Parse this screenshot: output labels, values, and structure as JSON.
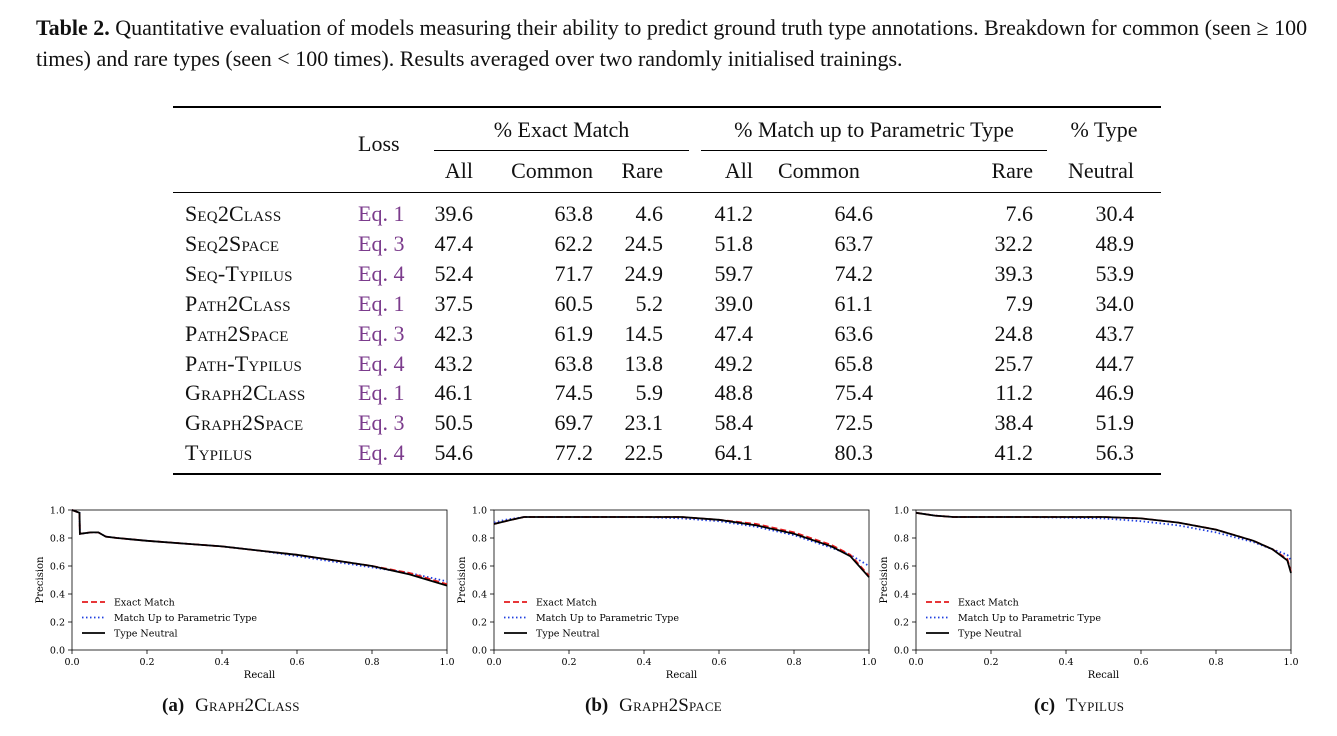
{
  "caption": {
    "label": "Table 2.",
    "text": "Quantitative evaluation of models measuring their ability to predict ground truth type annotations. Breakdown for common (seen ≥ 100 times) and rare types (seen < 100 times). Results averaged over two randomly initialised trainings."
  },
  "table": {
    "headers": {
      "loss": "Loss",
      "exact": "% Exact Match",
      "param": "% Match up to Parametric Type",
      "type": "% Type",
      "neutral": "Neutral",
      "all": "All",
      "common": "Common",
      "rare": "Rare"
    },
    "rows": [
      {
        "model": "Seq2Class",
        "loss": "Eq. 1",
        "e_all": "39.6",
        "e_common": "63.8",
        "e_rare": "4.6",
        "p_all": "41.2",
        "p_common": "64.6",
        "p_rare": "7.6",
        "neutral": "30.4"
      },
      {
        "model": "Seq2Space",
        "loss": "Eq. 3",
        "e_all": "47.4",
        "e_common": "62.2",
        "e_rare": "24.5",
        "p_all": "51.8",
        "p_common": "63.7",
        "p_rare": "32.2",
        "neutral": "48.9"
      },
      {
        "model": "Seq-Typilus",
        "loss": "Eq. 4",
        "e_all": "52.4",
        "e_common": "71.7",
        "e_rare": "24.9",
        "p_all": "59.7",
        "p_common": "74.2",
        "p_rare": "39.3",
        "neutral": "53.9"
      },
      {
        "model": "Path2Class",
        "loss": "Eq. 1",
        "e_all": "37.5",
        "e_common": "60.5",
        "e_rare": "5.2",
        "p_all": "39.0",
        "p_common": "61.1",
        "p_rare": "7.9",
        "neutral": "34.0"
      },
      {
        "model": "Path2Space",
        "loss": "Eq. 3",
        "e_all": "42.3",
        "e_common": "61.9",
        "e_rare": "14.5",
        "p_all": "47.4",
        "p_common": "63.6",
        "p_rare": "24.8",
        "neutral": "43.7"
      },
      {
        "model": "Path-Typilus",
        "loss": "Eq. 4",
        "e_all": "43.2",
        "e_common": "63.8",
        "e_rare": "13.8",
        "p_all": "49.2",
        "p_common": "65.8",
        "p_rare": "25.7",
        "neutral": "44.7"
      },
      {
        "model": "Graph2Class",
        "loss": "Eq. 1",
        "e_all": "46.1",
        "e_common": "74.5",
        "e_rare": "5.9",
        "p_all": "48.8",
        "p_common": "75.4",
        "p_rare": "11.2",
        "neutral": "46.9"
      },
      {
        "model": "Graph2Space",
        "loss": "Eq. 3",
        "e_all": "50.5",
        "e_common": "69.7",
        "e_rare": "23.1",
        "p_all": "58.4",
        "p_common": "72.5",
        "p_rare": "38.4",
        "neutral": "51.9"
      },
      {
        "model": "Typilus",
        "loss": "Eq. 4",
        "e_all": "54.6",
        "e_common": "77.2",
        "e_rare": "22.5",
        "p_all": "64.1",
        "p_common": "80.3",
        "p_rare": "41.2",
        "neutral": "56.3"
      }
    ]
  },
  "chart_data": [
    {
      "type": "line",
      "xlabel": "Recall",
      "ylabel": "Precision",
      "xlim": [
        0,
        1
      ],
      "ylim": [
        0,
        1
      ],
      "xticks": [
        "0.0",
        "0.2",
        "0.4",
        "0.6",
        "0.8",
        "1.0"
      ],
      "yticks": [
        "0.0",
        "0.2",
        "0.4",
        "0.6",
        "0.8",
        "1.0"
      ],
      "legend_position": "lower-left",
      "series": [
        {
          "name": "Exact Match",
          "style": "dashed",
          "color": "#e41a1c",
          "x": [
            0,
            0.02,
            0.021,
            0.05,
            0.07,
            0.09,
            0.12,
            0.2,
            0.3,
            0.4,
            0.5,
            0.6,
            0.7,
            0.8,
            0.9,
            1.0
          ],
          "y": [
            1.0,
            0.98,
            0.83,
            0.84,
            0.84,
            0.81,
            0.8,
            0.78,
            0.76,
            0.74,
            0.71,
            0.68,
            0.64,
            0.6,
            0.55,
            0.47
          ]
        },
        {
          "name": "Match Up to Parametric Type",
          "style": "dotted",
          "color": "#1f3fe0",
          "x": [
            0,
            0.02,
            0.021,
            0.05,
            0.07,
            0.09,
            0.12,
            0.2,
            0.3,
            0.4,
            0.5,
            0.6,
            0.7,
            0.8,
            0.9,
            1.0
          ],
          "y": [
            1.0,
            0.98,
            0.83,
            0.84,
            0.84,
            0.81,
            0.8,
            0.78,
            0.76,
            0.74,
            0.71,
            0.67,
            0.63,
            0.59,
            0.55,
            0.49
          ]
        },
        {
          "name": "Type Neutral",
          "style": "solid",
          "color": "#000000",
          "x": [
            0,
            0.02,
            0.021,
            0.05,
            0.07,
            0.09,
            0.12,
            0.2,
            0.3,
            0.4,
            0.5,
            0.6,
            0.7,
            0.8,
            0.9,
            1.0
          ],
          "y": [
            1.0,
            0.98,
            0.83,
            0.84,
            0.84,
            0.81,
            0.8,
            0.78,
            0.76,
            0.74,
            0.71,
            0.68,
            0.64,
            0.6,
            0.54,
            0.46
          ]
        }
      ],
      "caption_label": "(a)",
      "caption_model": "Graph2Class"
    },
    {
      "type": "line",
      "xlabel": "Recall",
      "ylabel": "Precision",
      "xlim": [
        0,
        1
      ],
      "ylim": [
        0,
        1
      ],
      "xticks": [
        "0.0",
        "0.2",
        "0.4",
        "0.6",
        "0.8",
        "1.0"
      ],
      "yticks": [
        "0.0",
        "0.2",
        "0.4",
        "0.6",
        "0.8",
        "1.0"
      ],
      "legend_position": "lower-left",
      "series": [
        {
          "name": "Exact Match",
          "style": "dashed",
          "color": "#e41a1c",
          "x": [
            0,
            0.03,
            0.08,
            0.2,
            0.4,
            0.5,
            0.6,
            0.7,
            0.8,
            0.9,
            0.95,
            1.0
          ],
          "y": [
            0.9,
            0.92,
            0.95,
            0.95,
            0.95,
            0.95,
            0.93,
            0.9,
            0.84,
            0.75,
            0.68,
            0.53
          ]
        },
        {
          "name": "Match Up to Parametric Type",
          "style": "dotted",
          "color": "#1f3fe0",
          "x": [
            0,
            0.03,
            0.08,
            0.2,
            0.4,
            0.5,
            0.6,
            0.7,
            0.8,
            0.9,
            0.95,
            1.0
          ],
          "y": [
            0.91,
            0.93,
            0.95,
            0.95,
            0.95,
            0.94,
            0.92,
            0.88,
            0.82,
            0.73,
            0.68,
            0.6
          ]
        },
        {
          "name": "Type Neutral",
          "style": "solid",
          "color": "#000000",
          "x": [
            0,
            0.03,
            0.08,
            0.2,
            0.4,
            0.5,
            0.6,
            0.7,
            0.8,
            0.9,
            0.95,
            1.0
          ],
          "y": [
            0.9,
            0.92,
            0.95,
            0.95,
            0.95,
            0.95,
            0.93,
            0.89,
            0.83,
            0.74,
            0.67,
            0.52
          ]
        }
      ],
      "caption_label": "(b)",
      "caption_model": "Graph2Space"
    },
    {
      "type": "line",
      "xlabel": "Recall",
      "ylabel": "Precision",
      "xlim": [
        0,
        1
      ],
      "ylim": [
        0,
        1
      ],
      "xticks": [
        "0.0",
        "0.2",
        "0.4",
        "0.6",
        "0.8",
        "1.0"
      ],
      "yticks": [
        "0.0",
        "0.2",
        "0.4",
        "0.6",
        "0.8",
        "1.0"
      ],
      "legend_position": "lower-left",
      "series": [
        {
          "name": "Exact Match",
          "style": "dashed",
          "color": "#e41a1c",
          "x": [
            0,
            0.05,
            0.1,
            0.3,
            0.5,
            0.6,
            0.7,
            0.8,
            0.9,
            0.95,
            0.99,
            1.0
          ],
          "y": [
            0.98,
            0.96,
            0.95,
            0.95,
            0.95,
            0.94,
            0.91,
            0.86,
            0.78,
            0.72,
            0.65,
            0.56
          ]
        },
        {
          "name": "Match Up to Parametric Type",
          "style": "dotted",
          "color": "#1f3fe0",
          "x": [
            0,
            0.05,
            0.1,
            0.3,
            0.5,
            0.6,
            0.7,
            0.8,
            0.9,
            0.95,
            0.99,
            1.0
          ],
          "y": [
            0.98,
            0.96,
            0.95,
            0.95,
            0.94,
            0.92,
            0.89,
            0.84,
            0.77,
            0.72,
            0.68,
            0.64
          ]
        },
        {
          "name": "Type Neutral",
          "style": "solid",
          "color": "#000000",
          "x": [
            0,
            0.05,
            0.1,
            0.3,
            0.5,
            0.6,
            0.7,
            0.8,
            0.9,
            0.95,
            0.99,
            1.0
          ],
          "y": [
            0.98,
            0.96,
            0.95,
            0.95,
            0.95,
            0.94,
            0.91,
            0.86,
            0.78,
            0.72,
            0.64,
            0.55
          ]
        }
      ],
      "caption_label": "(c)",
      "caption_model": "Typilus"
    }
  ]
}
